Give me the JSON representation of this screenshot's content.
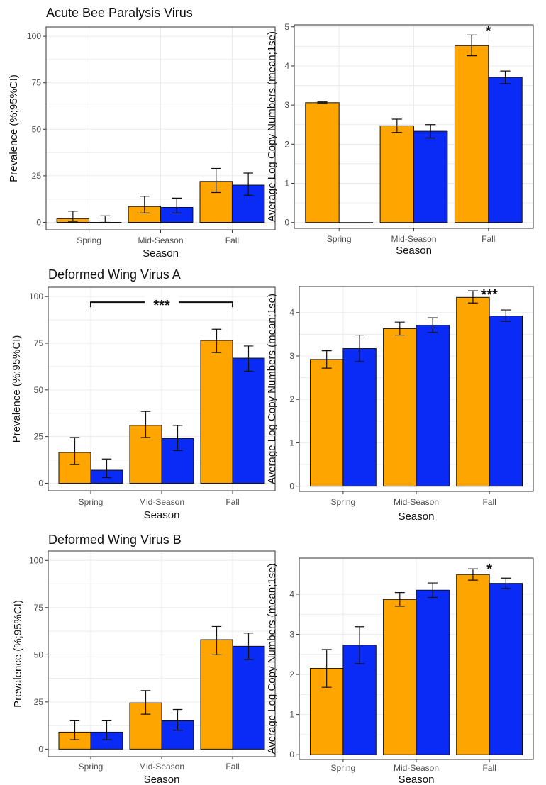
{
  "colors": {
    "group1": "#FFA500",
    "group2": "#0A2AF5",
    "frame": "#333333",
    "grid": "#EBEBEB"
  },
  "chart_data": [
    {
      "id": "abpv-prevalence",
      "type": "bar",
      "title": "Acute Bee Paralysis Virus",
      "xlabel": "Season",
      "ylabel": "Prevalence (%;95%CI)",
      "categories": [
        "Spring",
        "Mid-Season",
        "Fall"
      ],
      "ylim": [
        -4,
        105
      ],
      "yticks": [
        0,
        25,
        50,
        75,
        100
      ],
      "series": [
        {
          "values": [
            2,
            8.5,
            22
          ],
          "lower": [
            0.5,
            5,
            16
          ],
          "upper": [
            6,
            14,
            29
          ]
        },
        {
          "values": [
            0,
            8,
            20
          ],
          "lower": [
            0,
            5,
            14.5
          ],
          "upper": [
            3.5,
            13,
            26.5
          ]
        }
      ],
      "significance": [],
      "grid": true
    },
    {
      "id": "abpv-copies",
      "type": "bar",
      "title": "",
      "xlabel": "Season",
      "ylabel": "Average Log Copy Numbers (mean;1se)",
      "categories": [
        "Spring",
        "Mid-Season",
        "Fall"
      ],
      "ylim": [
        -0.15,
        5.05
      ],
      "yticks": [
        0,
        1,
        2,
        3,
        4,
        5
      ],
      "series": [
        {
          "values": [
            3.06,
            2.47,
            4.52
          ],
          "lower": [
            3.04,
            2.3,
            4.26
          ],
          "upper": [
            3.08,
            2.64,
            4.79
          ]
        },
        {
          "values": [
            0,
            2.33,
            3.71
          ],
          "lower": [
            0,
            2.16,
            3.55
          ],
          "upper": [
            0,
            2.5,
            3.87
          ]
        }
      ],
      "significance": [
        {
          "category": "Fall",
          "label": "*",
          "y": 4.93
        }
      ],
      "grid": true
    },
    {
      "id": "dwva-prevalence",
      "type": "bar",
      "title": "Deformed Wing Virus A",
      "xlabel": "Season",
      "ylabel": "Prevalence (%;95%CI)",
      "categories": [
        "Spring",
        "Mid-Season",
        "Fall"
      ],
      "ylim": [
        -4,
        105
      ],
      "yticks": [
        0,
        25,
        50,
        75,
        100
      ],
      "series": [
        {
          "values": [
            16.5,
            31,
            76.5
          ],
          "lower": [
            10,
            24.5,
            70
          ],
          "upper": [
            24.5,
            38.5,
            82.5
          ]
        },
        {
          "values": [
            7,
            24,
            67
          ],
          "lower": [
            3,
            17.5,
            60
          ],
          "upper": [
            13,
            31,
            73.5
          ]
        }
      ],
      "significance": [
        {
          "from": "Spring",
          "to": "Fall",
          "label": "***",
          "y": 97
        }
      ],
      "grid": true
    },
    {
      "id": "dwva-copies",
      "type": "bar",
      "title": "",
      "xlabel": "Season",
      "ylabel": "Average Log Copy Numbers (mean;1se)",
      "categories": [
        "Spring",
        "Mid-Season",
        "Fall"
      ],
      "ylim": [
        -0.12,
        4.6
      ],
      "yticks": [
        0,
        1,
        2,
        3,
        4
      ],
      "series": [
        {
          "values": [
            2.92,
            3.63,
            4.35
          ],
          "lower": [
            2.72,
            3.48,
            4.22
          ],
          "upper": [
            3.12,
            3.78,
            4.5
          ]
        },
        {
          "values": [
            3.17,
            3.71,
            3.92
          ],
          "lower": [
            2.87,
            3.54,
            3.8
          ],
          "upper": [
            3.48,
            3.88,
            4.06
          ]
        }
      ],
      "significance": [
        {
          "category": "Fall",
          "label": "***",
          "y": 4.45
        }
      ],
      "grid": true
    },
    {
      "id": "dwvb-prevalence",
      "type": "bar",
      "title": "Deformed Wing Virus B",
      "xlabel": "Season",
      "ylabel": "Prevalence (%;95%CI)",
      "categories": [
        "Spring",
        "Mid-Season",
        "Fall"
      ],
      "ylim": [
        -4,
        105
      ],
      "yticks": [
        0,
        25,
        50,
        75,
        100
      ],
      "series": [
        {
          "values": [
            9,
            24.5,
            58
          ],
          "lower": [
            5,
            18.5,
            50
          ],
          "upper": [
            15,
            31,
            65
          ]
        },
        {
          "values": [
            9,
            15,
            54.5
          ],
          "lower": [
            5,
            10,
            47.5
          ],
          "upper": [
            15,
            21,
            61.5
          ]
        }
      ],
      "significance": [],
      "grid": true
    },
    {
      "id": "dwvb-copies",
      "type": "bar",
      "title": "",
      "xlabel": "Season",
      "ylabel": "Average Log Copy Numbers (mean;1se)",
      "categories": [
        "Spring",
        "Mid-Season",
        "Fall"
      ],
      "ylim": [
        -0.12,
        4.9
      ],
      "yticks": [
        0,
        1,
        2,
        3,
        4
      ],
      "series": [
        {
          "values": [
            2.15,
            3.87,
            4.49
          ],
          "lower": [
            1.68,
            3.7,
            4.35
          ],
          "upper": [
            2.62,
            4.04,
            4.63
          ]
        },
        {
          "values": [
            2.73,
            4.1,
            4.27
          ],
          "lower": [
            2.27,
            3.92,
            4.14
          ],
          "upper": [
            3.19,
            4.28,
            4.4
          ]
        }
      ],
      "significance": [
        {
          "category": "Fall",
          "label": "*",
          "y": 4.67
        }
      ],
      "grid": true
    }
  ]
}
